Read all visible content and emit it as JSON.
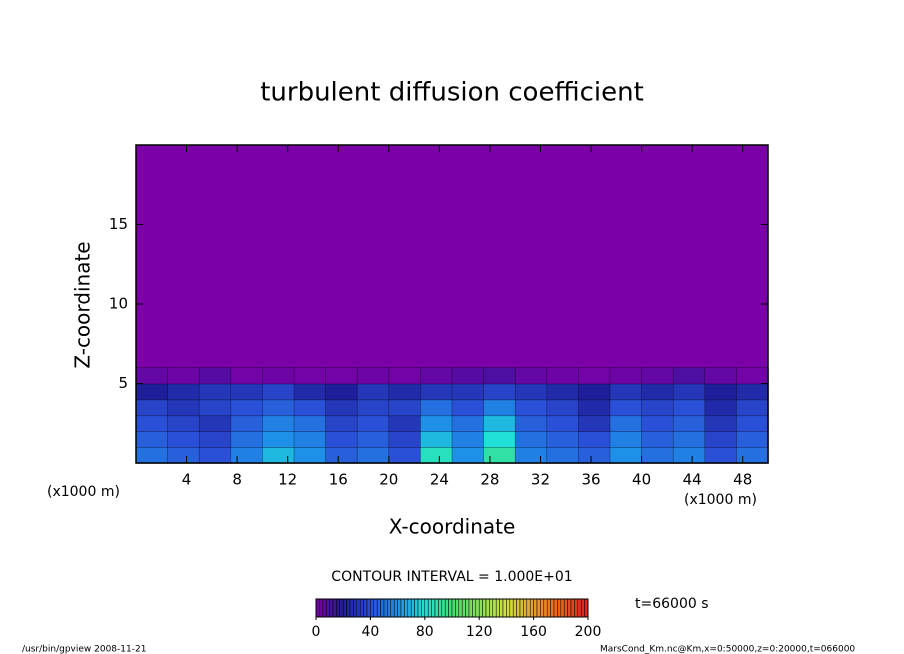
{
  "chart_data": {
    "type": "contour",
    "title": "turbulent diffusion coefficient",
    "x_label": "X-coordinate",
    "y_label": "Z-coordinate",
    "x_unit": "(x1000 m)",
    "xlim": [
      0,
      50
    ],
    "ylim": [
      0,
      20
    ],
    "xticks": [
      4,
      8,
      12,
      16,
      20,
      24,
      28,
      32,
      36,
      40,
      44,
      48
    ],
    "yticks": [
      5,
      10,
      15
    ],
    "x": [
      1.25,
      3.75,
      6.25,
      8.75,
      11.25,
      13.75,
      16.25,
      18.75,
      21.25,
      23.75,
      26.25,
      28.75,
      31.25,
      33.75,
      36.25,
      38.75,
      41.25,
      43.75,
      46.25,
      48.75
    ],
    "z": [
      0.5,
      1.5,
      2.5,
      3.5,
      4.5,
      5.5
    ],
    "values": [
      [
        50,
        45,
        40,
        55,
        70,
        60,
        45,
        50,
        40,
        85,
        60,
        90,
        55,
        50,
        45,
        60,
        50,
        55,
        40,
        50
      ],
      [
        45,
        40,
        35,
        50,
        60,
        55,
        40,
        45,
        35,
        70,
        55,
        80,
        50,
        45,
        40,
        55,
        45,
        50,
        35,
        45
      ],
      [
        40,
        35,
        30,
        45,
        55,
        50,
        35,
        40,
        30,
        60,
        50,
        70,
        45,
        40,
        30,
        50,
        40,
        45,
        30,
        40
      ],
      [
        35,
        30,
        35,
        40,
        45,
        40,
        30,
        35,
        35,
        50,
        40,
        55,
        40,
        35,
        25,
        40,
        35,
        40,
        25,
        35
      ],
      [
        20,
        25,
        30,
        30,
        35,
        25,
        20,
        30,
        25,
        30,
        30,
        35,
        30,
        25,
        20,
        30,
        25,
        30,
        20,
        25
      ],
      [
        5,
        3,
        8,
        2,
        3,
        2,
        2,
        3,
        2,
        5,
        8,
        10,
        5,
        3,
        2,
        3,
        5,
        10,
        5,
        2
      ]
    ],
    "contour_interval": "CONTOUR INTERVAL = 1.000E+01",
    "clim": [
      0,
      200
    ],
    "colorbar_ticks": [
      0,
      40,
      80,
      120,
      160,
      200
    ],
    "colorscale": [
      [
        0,
        "#7b00a8"
      ],
      [
        20,
        "#1e1e9a"
      ],
      [
        40,
        "#2b50d8"
      ],
      [
        60,
        "#1e90e8"
      ],
      [
        80,
        "#20e0d8"
      ],
      [
        100,
        "#40e070"
      ],
      [
        140,
        "#d0e040"
      ],
      [
        170,
        "#f08020"
      ],
      [
        200,
        "#e02020"
      ]
    ],
    "time": "t=66000 s",
    "footer_left": "/usr/bin/gpview  2008-11-21",
    "footer_right": "MarsCond_Km.nc@Km,x=0:50000,z=0:20000,t=066000"
  }
}
